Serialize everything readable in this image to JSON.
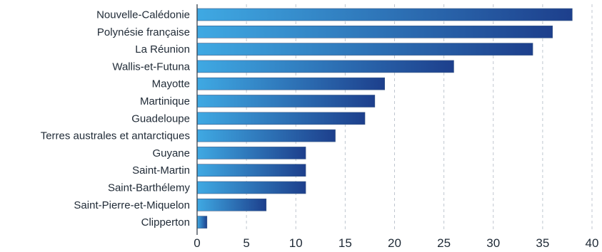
{
  "chart_data": {
    "type": "bar",
    "orientation": "horizontal",
    "categories": [
      "Nouvelle-Calédonie",
      "Polynésie française",
      "La Réunion",
      "Wallis-et-Futuna",
      "Mayotte",
      "Martinique",
      "Guadeloupe",
      "Terres australes et antarctiques",
      "Guyane",
      "Saint-Martin",
      "Saint-Barthélemy",
      "Saint-Pierre-et-Miquelon",
      "Clipperton"
    ],
    "values": [
      38,
      36,
      34,
      26,
      19,
      18,
      17,
      14,
      11,
      11,
      11,
      7,
      1
    ],
    "xlim": [
      0,
      40
    ],
    "xticks": [
      0,
      5,
      10,
      15,
      20,
      25,
      30,
      35,
      40
    ],
    "grid": "vertical dashed",
    "legend": "none",
    "colors": {
      "bar_start": "#3fa9e3",
      "bar_end": "#1d3f8c",
      "bar_edge": "#3c5a86"
    }
  }
}
